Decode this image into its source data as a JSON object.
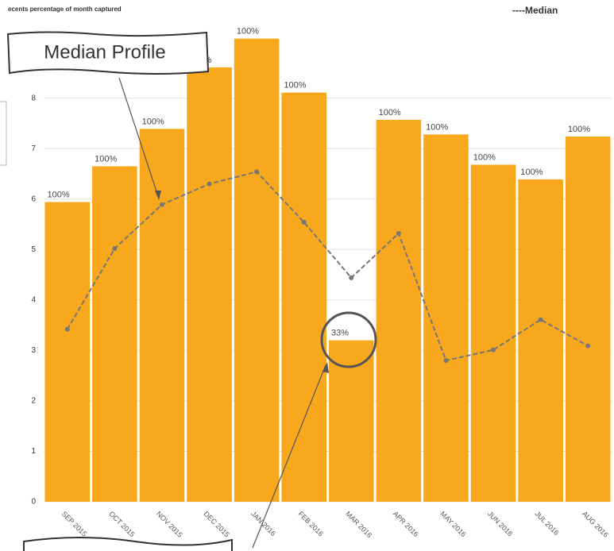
{
  "chart_data": {
    "type": "bar",
    "title": "ecents percentage of month captured",
    "categories": [
      "SEP 2015",
      "OCT 2015",
      "NOV 2015",
      "DEC 2015",
      "JAN 2016",
      "FEB 2016",
      "MAR 2016",
      "APR 2016",
      "MAY 2016",
      "JUN 2016",
      "JUL 2016",
      "AUG 2016"
    ],
    "bars": {
      "color": "#f7a81d",
      "values": [
        5.94,
        6.65,
        7.39,
        8.61,
        9.18,
        8.11,
        3.2,
        7.57,
        7.28,
        6.68,
        6.39,
        7.24
      ]
    },
    "bar_labels": [
      "100%",
      "100%",
      "100%",
      "100%",
      "100%",
      "100%",
      "33%",
      "100%",
      "100%",
      "100%",
      "100%",
      "100%"
    ],
    "series": [
      {
        "name": "----Median",
        "color": "#777777",
        "values": [
          3.42,
          5.02,
          5.89,
          6.3,
          6.54,
          5.54,
          4.44,
          5.32,
          2.8,
          3.01,
          3.61,
          3.09
        ]
      }
    ],
    "ylim": [
      0,
      9.3
    ],
    "yticks": [
      0,
      1,
      2,
      3,
      4,
      5,
      6,
      7,
      8
    ],
    "grid": true,
    "legend": "top-right",
    "annotations": [
      "Median Profile"
    ]
  }
}
